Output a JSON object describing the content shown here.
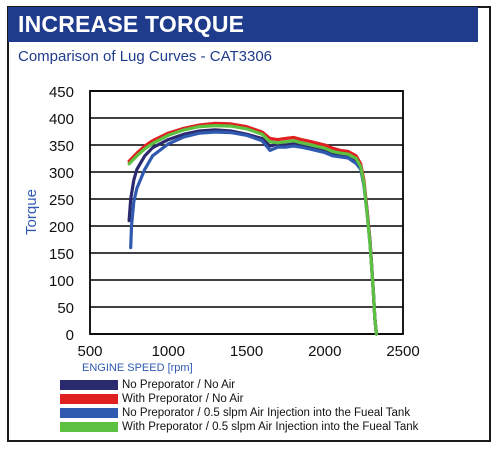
{
  "header": {
    "title": "INCREASE TORQUE"
  },
  "subtitle": "Comparison of Lug Curves - CAT3306",
  "chart_data": {
    "type": "line",
    "title": "Comparison of Lug Curves - CAT3306",
    "xlabel": "ENGINE SPEED [rpm]",
    "ylabel": "Torque",
    "xlim": [
      500,
      2500
    ],
    "ylim": [
      0,
      450
    ],
    "xticks": [
      500,
      1000,
      1500,
      2000,
      2500
    ],
    "yticks": [
      0,
      50,
      100,
      150,
      200,
      250,
      300,
      350,
      400,
      450
    ],
    "grid": "horizontal",
    "legend_position": "bottom",
    "series": [
      {
        "name": "No Preporator / No Air",
        "color": "#2b2a6e",
        "x": [
          750,
          760,
          780,
          800,
          850,
          900,
          1000,
          1100,
          1200,
          1300,
          1400,
          1500,
          1600,
          1650,
          1700,
          1750,
          1800,
          1850,
          1900,
          2000,
          2050,
          2100,
          2150,
          2200,
          2230,
          2250,
          2270,
          2290,
          2310,
          2320,
          2330
        ],
        "y": [
          210,
          250,
          285,
          305,
          330,
          345,
          360,
          370,
          376,
          378,
          376,
          370,
          362,
          348,
          352,
          350,
          352,
          350,
          347,
          340,
          334,
          332,
          330,
          320,
          308,
          280,
          230,
          170,
          80,
          30,
          0
        ]
      },
      {
        "name": "With Preporator / No Air",
        "color": "#e02020",
        "x": [
          750,
          800,
          850,
          900,
          1000,
          1100,
          1200,
          1300,
          1400,
          1500,
          1600,
          1650,
          1700,
          1750,
          1800,
          1850,
          1900,
          2000,
          2050,
          2100,
          2150,
          2200,
          2230,
          2250,
          2270,
          2290,
          2310,
          2320,
          2330
        ],
        "y": [
          320,
          335,
          348,
          358,
          372,
          381,
          387,
          390,
          389,
          384,
          374,
          362,
          360,
          362,
          364,
          360,
          357,
          350,
          344,
          340,
          338,
          330,
          315,
          285,
          230,
          170,
          80,
          30,
          0
        ]
      },
      {
        "name": "No Preporator / 0.5 slpm Air Injection into the Fueal Tank",
        "color": "#2f5ab0",
        "x": [
          760,
          765,
          780,
          800,
          850,
          900,
          1000,
          1100,
          1200,
          1300,
          1400,
          1500,
          1600,
          1650,
          1700,
          1750,
          1800,
          1850,
          1900,
          2000,
          2050,
          2100,
          2150,
          2200,
          2230,
          2250,
          2270,
          2290,
          2310,
          2320,
          2330
        ],
        "y": [
          160,
          200,
          245,
          270,
          305,
          330,
          352,
          365,
          372,
          374,
          373,
          368,
          358,
          340,
          346,
          346,
          348,
          346,
          343,
          336,
          330,
          328,
          326,
          316,
          305,
          275,
          225,
          165,
          80,
          30,
          0
        ]
      },
      {
        "name": "With Preporator / 0.5 slpm Air Injection into the Fueal Tank",
        "color": "#5cc040",
        "x": [
          750,
          800,
          850,
          900,
          1000,
          1100,
          1200,
          1300,
          1400,
          1500,
          1600,
          1650,
          1700,
          1750,
          1800,
          1850,
          1900,
          2000,
          2050,
          2100,
          2150,
          2200,
          2230,
          2250,
          2270,
          2290,
          2310,
          2320,
          2330
        ],
        "y": [
          315,
          330,
          343,
          353,
          368,
          378,
          384,
          386,
          385,
          380,
          370,
          356,
          354,
          356,
          358,
          354,
          351,
          344,
          338,
          335,
          333,
          325,
          310,
          280,
          225,
          165,
          80,
          30,
          0
        ]
      }
    ]
  }
}
